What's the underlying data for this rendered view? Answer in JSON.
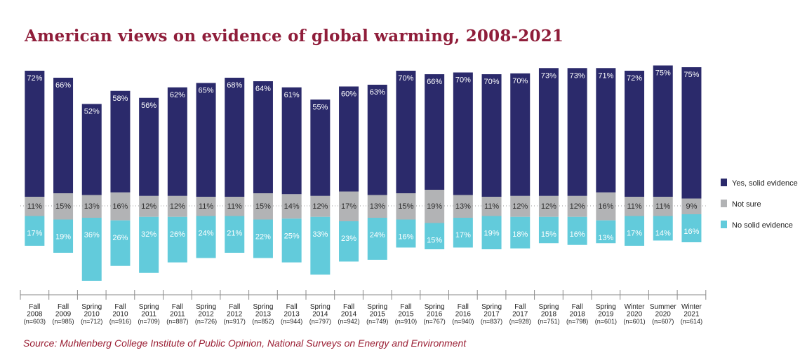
{
  "chart_data": {
    "type": "bar",
    "title": "American views on evidence of global warming, 2008-2021",
    "categories": [
      [
        "Fall",
        "2008",
        "(n=603)"
      ],
      [
        "Fall",
        "2009",
        "(n=985)"
      ],
      [
        "Spring",
        "2010",
        "(n=712)"
      ],
      [
        "Fall",
        "2010",
        "(n=916)"
      ],
      [
        "Spring",
        "2011",
        "(n=709)"
      ],
      [
        "Fall",
        "2011",
        "(n=887)"
      ],
      [
        "Spring",
        "2012",
        "(n=726)"
      ],
      [
        "Fall",
        "2012",
        "(n=917)"
      ],
      [
        "Spring",
        "2013",
        "(n=852)"
      ],
      [
        "Fall",
        "2013",
        "(n=944)"
      ],
      [
        "Spring",
        "2014",
        "(n=797)"
      ],
      [
        "Fall",
        "2014",
        "(n=942)"
      ],
      [
        "Spring",
        "2015",
        "(n=749)"
      ],
      [
        "Fall",
        "2015",
        "(n=910)"
      ],
      [
        "Spring",
        "2016",
        "(n=767)"
      ],
      [
        "Fall",
        "2016",
        "(n=940)"
      ],
      [
        "Spring",
        "2017",
        "(n=837)"
      ],
      [
        "Fall",
        "2017",
        "(n=928)"
      ],
      [
        "Spring",
        "2018",
        "(n=751)"
      ],
      [
        "Fall",
        "2018",
        "(n=798)"
      ],
      [
        "Spring",
        "2019",
        "(n=601)"
      ],
      [
        "Winter",
        "2020",
        "(n=601)"
      ],
      [
        "Summer",
        "2020",
        "(n=607)"
      ],
      [
        "Winter",
        "2021",
        "(n=614)"
      ]
    ],
    "series": [
      {
        "name": "Yes, solid evidence",
        "color": "#2b2a6b",
        "values": [
          72,
          66,
          52,
          58,
          56,
          62,
          65,
          68,
          64,
          61,
          55,
          60,
          63,
          70,
          66,
          70,
          70,
          70,
          73,
          73,
          71,
          72,
          75,
          75
        ]
      },
      {
        "name": "Not sure",
        "color": "#b2b3b5",
        "values": [
          11,
          15,
          13,
          16,
          12,
          12,
          11,
          11,
          15,
          14,
          12,
          17,
          13,
          15,
          19,
          13,
          11,
          12,
          12,
          12,
          16,
          11,
          11,
          9
        ]
      },
      {
        "name": "No solid evidence",
        "color": "#62cbdb",
        "values": [
          17,
          19,
          36,
          26,
          32,
          26,
          24,
          21,
          22,
          25,
          33,
          23,
          24,
          16,
          15,
          17,
          19,
          18,
          15,
          16,
          13,
          17,
          14,
          16
        ]
      }
    ],
    "value_suffix": "%",
    "legend_position": "right",
    "source": "Source: Muhlenberg College Institute of Public Opinion, National Surveys on Energy and Environment"
  }
}
